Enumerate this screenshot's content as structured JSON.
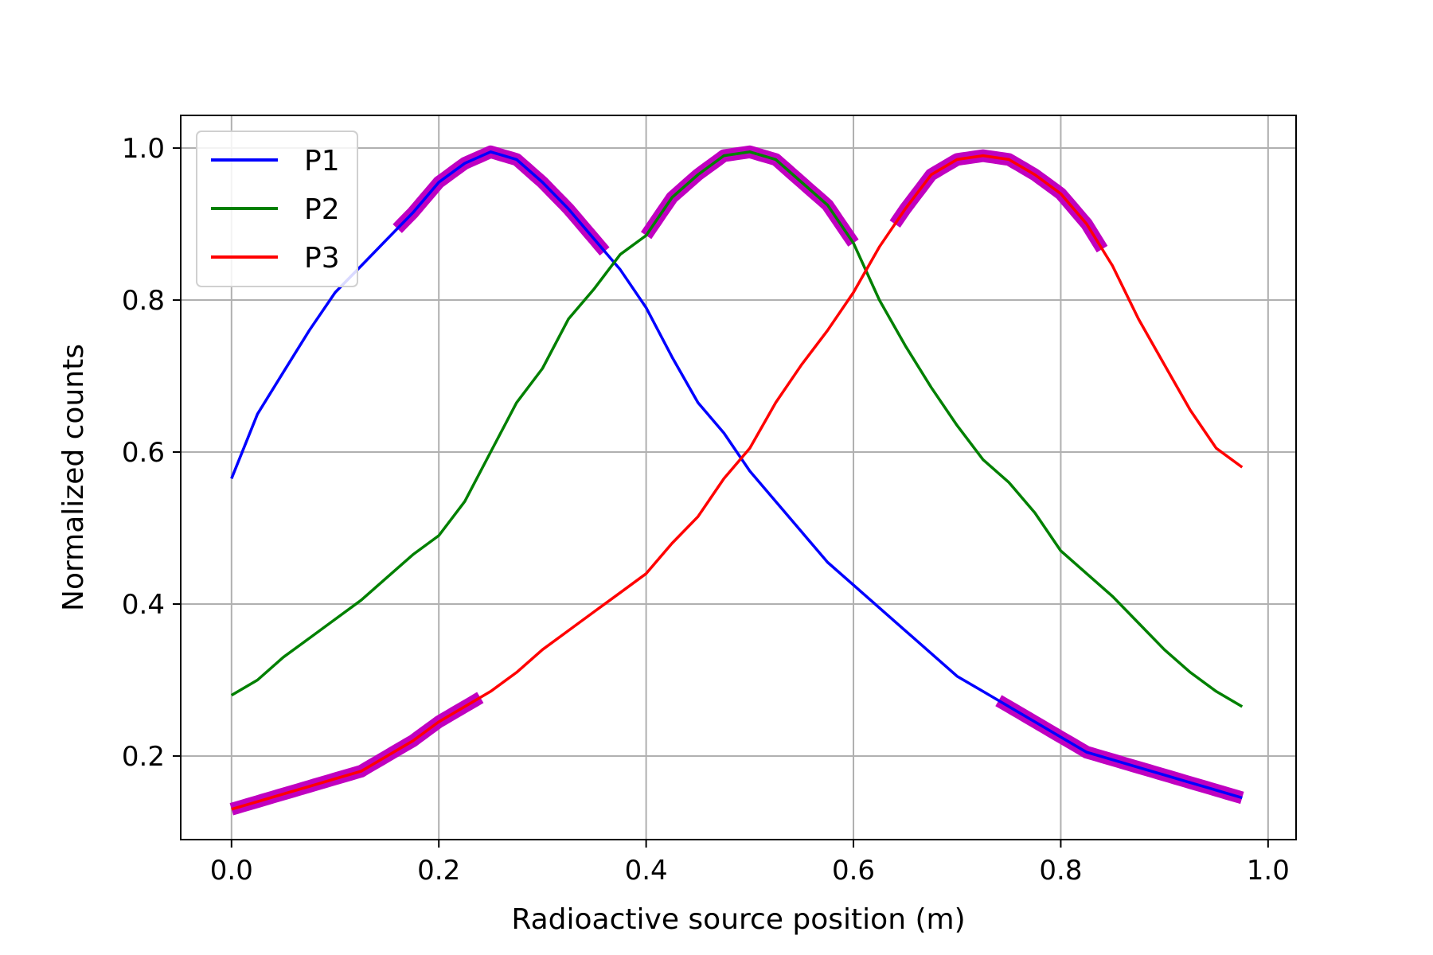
{
  "chart_data": {
    "type": "line",
    "title": "",
    "xlabel": "Radioactive source position (m)",
    "ylabel": "Normalized counts",
    "xlim": [
      -0.049,
      1.027
    ],
    "ylim": [
      0.09,
      1.043
    ],
    "x_ticks": [
      0.0,
      0.2,
      0.4,
      0.6,
      0.8,
      1.0
    ],
    "x_tick_labels": [
      "0.0",
      "0.2",
      "0.4",
      "0.6",
      "0.8",
      "1.0"
    ],
    "y_ticks": [
      0.2,
      0.4,
      0.6,
      0.8,
      1.0
    ],
    "y_tick_labels": [
      "0.2",
      "0.4",
      "0.6",
      "0.8",
      "1.0"
    ],
    "grid": true,
    "legend_position": "upper-left",
    "highlight_color": "#c000c0",
    "series": [
      {
        "name": "P1",
        "color": "#0000ff",
        "x": [
          0.0,
          0.025,
          0.05,
          0.075,
          0.1,
          0.125,
          0.15,
          0.175,
          0.2,
          0.225,
          0.25,
          0.275,
          0.3,
          0.325,
          0.35,
          0.375,
          0.4,
          0.425,
          0.45,
          0.475,
          0.5,
          0.525,
          0.55,
          0.575,
          0.6,
          0.625,
          0.65,
          0.675,
          0.7,
          0.725,
          0.75,
          0.775,
          0.8,
          0.825,
          0.85,
          0.875,
          0.9,
          0.925,
          0.95,
          0.975
        ],
        "y": [
          0.565,
          0.65,
          0.705,
          0.76,
          0.81,
          0.845,
          0.88,
          0.915,
          0.955,
          0.98,
          0.995,
          0.985,
          0.955,
          0.92,
          0.88,
          0.84,
          0.79,
          0.725,
          0.665,
          0.625,
          0.575,
          0.535,
          0.495,
          0.455,
          0.425,
          0.395,
          0.365,
          0.335,
          0.305,
          0.285,
          0.265,
          0.245,
          0.225,
          0.205,
          0.195,
          0.185,
          0.175,
          0.165,
          0.155,
          0.145
        ],
        "highlight_ranges": [
          [
            0.16,
            0.36
          ],
          [
            0.74,
            0.975
          ]
        ]
      },
      {
        "name": "P2",
        "color": "#008000",
        "x": [
          0.0,
          0.025,
          0.05,
          0.075,
          0.1,
          0.125,
          0.15,
          0.175,
          0.2,
          0.225,
          0.25,
          0.275,
          0.3,
          0.325,
          0.35,
          0.375,
          0.4,
          0.425,
          0.45,
          0.475,
          0.5,
          0.525,
          0.55,
          0.575,
          0.6,
          0.625,
          0.65,
          0.675,
          0.7,
          0.725,
          0.75,
          0.775,
          0.8,
          0.825,
          0.85,
          0.875,
          0.9,
          0.925,
          0.95,
          0.975
        ],
        "y": [
          0.28,
          0.3,
          0.33,
          0.355,
          0.38,
          0.405,
          0.435,
          0.465,
          0.49,
          0.535,
          0.6,
          0.665,
          0.71,
          0.775,
          0.815,
          0.86,
          0.885,
          0.935,
          0.965,
          0.99,
          0.995,
          0.985,
          0.955,
          0.925,
          0.875,
          0.8,
          0.74,
          0.685,
          0.635,
          0.59,
          0.56,
          0.52,
          0.47,
          0.44,
          0.41,
          0.375,
          0.34,
          0.31,
          0.285,
          0.265
        ],
        "highlight_ranges": [
          [
            0.4,
            0.6
          ]
        ]
      },
      {
        "name": "P3",
        "color": "#ff0000",
        "x": [
          0.0,
          0.025,
          0.05,
          0.075,
          0.1,
          0.125,
          0.15,
          0.175,
          0.2,
          0.225,
          0.25,
          0.275,
          0.3,
          0.325,
          0.35,
          0.375,
          0.4,
          0.425,
          0.45,
          0.475,
          0.5,
          0.525,
          0.55,
          0.575,
          0.6,
          0.625,
          0.65,
          0.675,
          0.7,
          0.725,
          0.75,
          0.775,
          0.8,
          0.825,
          0.85,
          0.875,
          0.9,
          0.925,
          0.95,
          0.975
        ],
        "y": [
          0.13,
          0.14,
          0.15,
          0.16,
          0.17,
          0.18,
          0.2,
          0.22,
          0.245,
          0.265,
          0.285,
          0.31,
          0.34,
          0.365,
          0.39,
          0.415,
          0.44,
          0.48,
          0.515,
          0.565,
          0.605,
          0.665,
          0.715,
          0.76,
          0.81,
          0.87,
          0.92,
          0.965,
          0.985,
          0.99,
          0.985,
          0.965,
          0.94,
          0.9,
          0.845,
          0.775,
          0.715,
          0.655,
          0.605,
          0.58
        ],
        "highlight_ranges": [
          [
            0.0,
            0.24
          ],
          [
            0.64,
            0.84
          ]
        ]
      }
    ]
  }
}
